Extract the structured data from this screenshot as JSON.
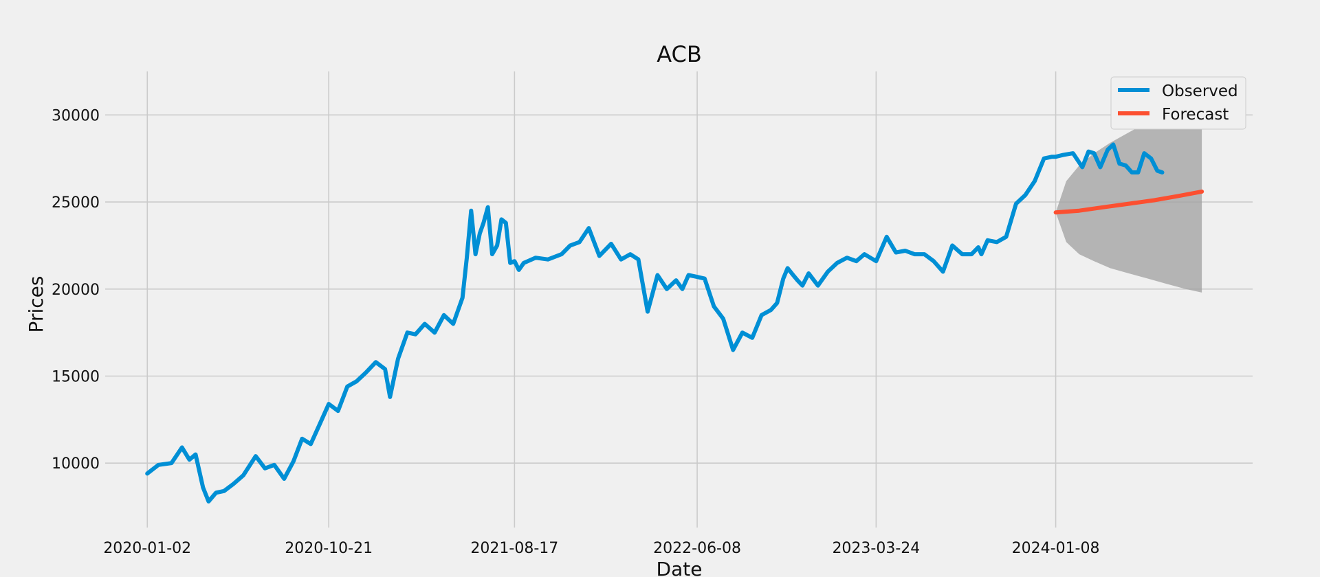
{
  "chart_data": {
    "type": "line",
    "title": "ACB",
    "xlabel": "Date",
    "ylabel": "Prices",
    "xlim": [
      "2019-10-26",
      "2024-11-21"
    ],
    "ylim": [
      6300,
      32500
    ],
    "x_ticks": [
      "2020-01-02",
      "2020-10-21",
      "2021-08-17",
      "2022-06-08",
      "2023-03-24",
      "2024-01-08"
    ],
    "y_ticks": [
      10000,
      15000,
      20000,
      25000,
      30000
    ],
    "grid": true,
    "legend_position": "top-right",
    "colors": {
      "observed": "#008fd5",
      "forecast": "#fc4f30",
      "confidence": "#a0a0a0",
      "grid": "#cbcbcb",
      "background": "#f0f0f0"
    },
    "series": [
      {
        "name": "Observed",
        "x": [
          "2020-01-02",
          "2020-01-20",
          "2020-02-10",
          "2020-02-27",
          "2020-03-10",
          "2020-03-20",
          "2020-04-01",
          "2020-04-10",
          "2020-04-22",
          "2020-05-05",
          "2020-05-20",
          "2020-06-05",
          "2020-06-25",
          "2020-07-10",
          "2020-07-25",
          "2020-08-10",
          "2020-08-25",
          "2020-09-08",
          "2020-09-22",
          "2020-10-06",
          "2020-10-21",
          "2020-11-05",
          "2020-11-20",
          "2020-12-05",
          "2020-12-20",
          "2021-01-05",
          "2021-01-20",
          "2021-01-28",
          "2021-02-10",
          "2021-02-25",
          "2021-03-10",
          "2021-03-25",
          "2021-04-10",
          "2021-04-25",
          "2021-05-10",
          "2021-05-25",
          "2021-06-01",
          "2021-06-08",
          "2021-06-15",
          "2021-06-22",
          "2021-06-28",
          "2021-07-05",
          "2021-07-12",
          "2021-07-20",
          "2021-07-27",
          "2021-08-03",
          "2021-08-10",
          "2021-08-17",
          "2021-08-24",
          "2021-09-01",
          "2021-09-20",
          "2021-10-10",
          "2021-11-01",
          "2021-11-15",
          "2021-11-30",
          "2021-12-15",
          "2022-01-01",
          "2022-01-20",
          "2022-02-05",
          "2022-02-20",
          "2022-03-05",
          "2022-03-20",
          "2022-04-05",
          "2022-04-20",
          "2022-05-05",
          "2022-05-15",
          "2022-05-25",
          "2022-06-08",
          "2022-06-20",
          "2022-07-05",
          "2022-07-20",
          "2022-08-05",
          "2022-08-20",
          "2022-09-05",
          "2022-09-20",
          "2022-10-05",
          "2022-10-15",
          "2022-10-25",
          "2022-11-01",
          "2022-11-10",
          "2022-11-17",
          "2022-11-25",
          "2022-12-05",
          "2022-12-20",
          "2023-01-05",
          "2023-01-20",
          "2023-02-05",
          "2023-02-20",
          "2023-03-05",
          "2023-03-24",
          "2023-04-10",
          "2023-04-25",
          "2023-05-10",
          "2023-05-25",
          "2023-06-10",
          "2023-06-25",
          "2023-07-10",
          "2023-07-25",
          "2023-08-10",
          "2023-08-25",
          "2023-09-05",
          "2023-09-10",
          "2023-09-20",
          "2023-10-05",
          "2023-10-20",
          "2023-11-05",
          "2023-11-20",
          "2023-12-05",
          "2023-12-20",
          "2024-01-02",
          "2024-01-08",
          "2024-01-20",
          "2024-02-05",
          "2024-02-20",
          "2024-03-01",
          "2024-03-10",
          "2024-03-20",
          "2024-04-01",
          "2024-04-10",
          "2024-04-20",
          "2024-04-30",
          "2024-05-10",
          "2024-05-20",
          "2024-05-30",
          "2024-06-10",
          "2024-06-20",
          "2024-06-28"
        ],
        "y": [
          9400,
          9900,
          10000,
          10900,
          10200,
          10500,
          8600,
          7800,
          8300,
          8400,
          8800,
          9300,
          10400,
          9700,
          9900,
          9100,
          10100,
          11400,
          11100,
          12200,
          13400,
          13000,
          14400,
          14700,
          15200,
          15800,
          15400,
          13800,
          16000,
          17500,
          17400,
          18000,
          17500,
          18500,
          18000,
          19500,
          21800,
          24500,
          22000,
          23200,
          23800,
          24700,
          22000,
          22500,
          24000,
          23800,
          21500,
          21600,
          21100,
          21500,
          21800,
          21700,
          22000,
          22500,
          22700,
          23500,
          21900,
          22600,
          21700,
          22000,
          21700,
          18700,
          20800,
          20000,
          20500,
          20000,
          20800,
          20700,
          20600,
          19000,
          18300,
          16500,
          17500,
          17200,
          18500,
          18800,
          19200,
          20600,
          21200,
          20800,
          20500,
          20200,
          20900,
          20200,
          21000,
          21500,
          21800,
          21600,
          22000,
          21600,
          23000,
          22100,
          22200,
          22000,
          22000,
          21600,
          21000,
          22500,
          22000,
          22000,
          22400,
          22000,
          22800,
          22700,
          23000,
          24900,
          25400,
          26200,
          27500,
          27600,
          27600,
          27700,
          27800,
          27000,
          27900,
          27800,
          27000,
          28000,
          28300,
          27200,
          27100,
          26700,
          26700,
          27800,
          27500,
          26800,
          26700
        ]
      },
      {
        "name": "Forecast",
        "x": [
          "2024-01-08",
          "2024-02-15",
          "2024-03-25",
          "2024-05-05",
          "2024-06-15",
          "2024-07-25",
          "2024-08-31"
        ],
        "y": [
          24400,
          24500,
          24700,
          24900,
          25100,
          25350,
          25600
        ]
      }
    ],
    "confidence_band": {
      "x": [
        "2024-01-08",
        "2024-01-25",
        "2024-02-15",
        "2024-03-10",
        "2024-04-05",
        "2024-05-05",
        "2024-06-05",
        "2024-07-05",
        "2024-08-05",
        "2024-08-31"
      ],
      "upper": [
        24400,
        26200,
        27100,
        27800,
        28400,
        29000,
        29600,
        30300,
        31000,
        31600
      ],
      "lower": [
        24400,
        22700,
        22000,
        21600,
        21200,
        20900,
        20600,
        20300,
        20000,
        19800
      ]
    }
  }
}
